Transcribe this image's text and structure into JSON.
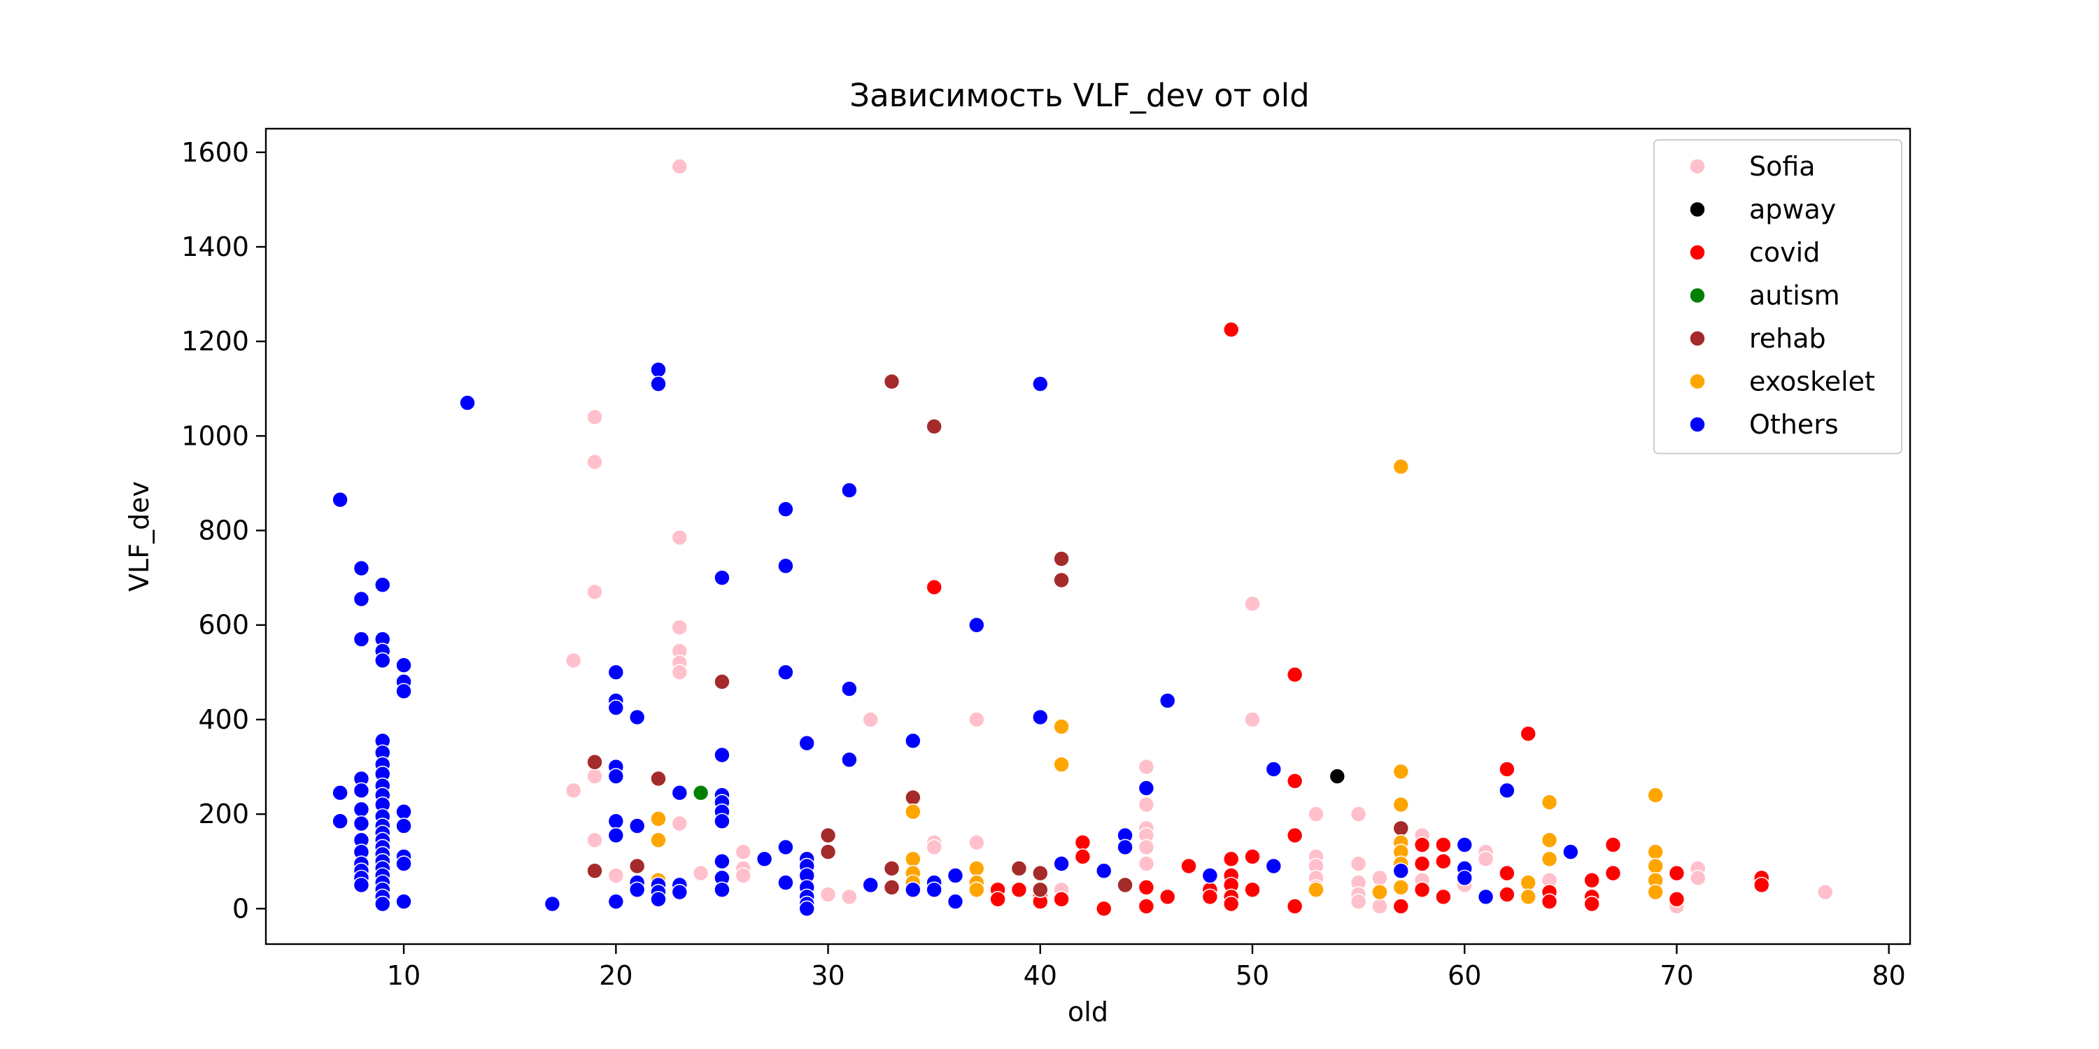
{
  "chart_data": {
    "type": "scatter",
    "title": "Зависимость VLF_dev от old",
    "xlabel": "old",
    "ylabel": "VLF_dev",
    "xlim": [
      3.5,
      81
    ],
    "ylim": [
      -75,
      1650
    ],
    "xticks": [
      10,
      20,
      30,
      40,
      50,
      60,
      70,
      80
    ],
    "yticks": [
      0,
      200,
      400,
      600,
      800,
      1000,
      1200,
      1400,
      1600
    ],
    "grid": false,
    "legend": "top-right",
    "series": [
      {
        "name": "Sofia",
        "color": "#ffc0cb",
        "points": [
          [
            18,
            525
          ],
          [
            18,
            250
          ],
          [
            19,
            1040
          ],
          [
            19,
            945
          ],
          [
            19,
            670
          ],
          [
            19,
            280
          ],
          [
            19,
            145
          ],
          [
            20,
            70
          ],
          [
            22,
            60
          ],
          [
            23,
            1570
          ],
          [
            23,
            785
          ],
          [
            23,
            595
          ],
          [
            23,
            545
          ],
          [
            23,
            520
          ],
          [
            23,
            500
          ],
          [
            23,
            180
          ],
          [
            24,
            75
          ],
          [
            26,
            120
          ],
          [
            26,
            85
          ],
          [
            26,
            70
          ],
          [
            30,
            30
          ],
          [
            31,
            25
          ],
          [
            32,
            400
          ],
          [
            35,
            140
          ],
          [
            35,
            130
          ],
          [
            37,
            400
          ],
          [
            37,
            140
          ],
          [
            41,
            40
          ],
          [
            45,
            300
          ],
          [
            45,
            220
          ],
          [
            45,
            170
          ],
          [
            45,
            155
          ],
          [
            45,
            130
          ],
          [
            45,
            95
          ],
          [
            50,
            645
          ],
          [
            50,
            400
          ],
          [
            53,
            200
          ],
          [
            53,
            110
          ],
          [
            53,
            90
          ],
          [
            53,
            65
          ],
          [
            53,
            45
          ],
          [
            55,
            200
          ],
          [
            55,
            95
          ],
          [
            55,
            55
          ],
          [
            55,
            30
          ],
          [
            55,
            15
          ],
          [
            56,
            65
          ],
          [
            56,
            5
          ],
          [
            57,
            100
          ],
          [
            58,
            155
          ],
          [
            58,
            60
          ],
          [
            60,
            50
          ],
          [
            61,
            120
          ],
          [
            61,
            105
          ],
          [
            64,
            60
          ],
          [
            69,
            85
          ],
          [
            70,
            15
          ],
          [
            70,
            5
          ],
          [
            71,
            85
          ],
          [
            71,
            65
          ],
          [
            77,
            35
          ]
        ]
      },
      {
        "name": "apway",
        "color": "#000000",
        "points": [
          [
            54,
            280
          ]
        ]
      },
      {
        "name": "covid",
        "color": "#ff0000",
        "points": [
          [
            35,
            680
          ],
          [
            38,
            40
          ],
          [
            38,
            20
          ],
          [
            39,
            40
          ],
          [
            40,
            30
          ],
          [
            40,
            15
          ],
          [
            41,
            20
          ],
          [
            42,
            140
          ],
          [
            42,
            110
          ],
          [
            43,
            0
          ],
          [
            45,
            45
          ],
          [
            45,
            5
          ],
          [
            46,
            25
          ],
          [
            47,
            90
          ],
          [
            48,
            40
          ],
          [
            48,
            25
          ],
          [
            49,
            1225
          ],
          [
            49,
            105
          ],
          [
            49,
            70
          ],
          [
            49,
            50
          ],
          [
            49,
            25
          ],
          [
            49,
            10
          ],
          [
            50,
            110
          ],
          [
            50,
            40
          ],
          [
            52,
            495
          ],
          [
            52,
            270
          ],
          [
            52,
            155
          ],
          [
            52,
            5
          ],
          [
            57,
            5
          ],
          [
            58,
            135
          ],
          [
            58,
            95
          ],
          [
            58,
            40
          ],
          [
            59,
            135
          ],
          [
            59,
            100
          ],
          [
            59,
            25
          ],
          [
            62,
            295
          ],
          [
            62,
            75
          ],
          [
            62,
            30
          ],
          [
            63,
            370
          ],
          [
            64,
            35
          ],
          [
            64,
            15
          ],
          [
            66,
            60
          ],
          [
            66,
            25
          ],
          [
            66,
            10
          ],
          [
            67,
            135
          ],
          [
            67,
            75
          ],
          [
            70,
            75
          ],
          [
            70,
            20
          ],
          [
            74,
            65
          ],
          [
            74,
            50
          ]
        ]
      },
      {
        "name": "autism",
        "color": "#008000",
        "points": [
          [
            24,
            245
          ]
        ]
      },
      {
        "name": "rehab",
        "color": "#a52a2a",
        "points": [
          [
            19,
            310
          ],
          [
            19,
            80
          ],
          [
            21,
            90
          ],
          [
            22,
            275
          ],
          [
            25,
            480
          ],
          [
            30,
            155
          ],
          [
            30,
            120
          ],
          [
            33,
            1115
          ],
          [
            33,
            85
          ],
          [
            33,
            45
          ],
          [
            34,
            235
          ],
          [
            35,
            1020
          ],
          [
            39,
            85
          ],
          [
            40,
            75
          ],
          [
            40,
            40
          ],
          [
            41,
            740
          ],
          [
            41,
            695
          ],
          [
            44,
            50
          ],
          [
            57,
            170
          ]
        ]
      },
      {
        "name": "exoskelet",
        "color": "#ffa500",
        "points": [
          [
            22,
            190
          ],
          [
            22,
            145
          ],
          [
            22,
            60
          ],
          [
            34,
            205
          ],
          [
            34,
            105
          ],
          [
            34,
            75
          ],
          [
            34,
            55
          ],
          [
            37,
            85
          ],
          [
            37,
            55
          ],
          [
            37,
            40
          ],
          [
            41,
            385
          ],
          [
            41,
            305
          ],
          [
            53,
            40
          ],
          [
            56,
            35
          ],
          [
            57,
            935
          ],
          [
            57,
            290
          ],
          [
            57,
            220
          ],
          [
            57,
            140
          ],
          [
            57,
            120
          ],
          [
            57,
            95
          ],
          [
            57,
            45
          ],
          [
            63,
            55
          ],
          [
            63,
            25
          ],
          [
            64,
            225
          ],
          [
            64,
            145
          ],
          [
            64,
            105
          ],
          [
            69,
            240
          ],
          [
            69,
            120
          ],
          [
            69,
            90
          ],
          [
            69,
            60
          ],
          [
            69,
            35
          ]
        ]
      },
      {
        "name": "Others",
        "color": "#0000ff",
        "points": [
          [
            7,
            865
          ],
          [
            7,
            245
          ],
          [
            7,
            185
          ],
          [
            8,
            720
          ],
          [
            8,
            655
          ],
          [
            8,
            570
          ],
          [
            8,
            275
          ],
          [
            8,
            250
          ],
          [
            8,
            210
          ],
          [
            8,
            180
          ],
          [
            8,
            145
          ],
          [
            8,
            120
          ],
          [
            8,
            95
          ],
          [
            8,
            80
          ],
          [
            8,
            65
          ],
          [
            8,
            50
          ],
          [
            9,
            685
          ],
          [
            9,
            570
          ],
          [
            9,
            545
          ],
          [
            9,
            525
          ],
          [
            9,
            355
          ],
          [
            9,
            330
          ],
          [
            9,
            305
          ],
          [
            9,
            285
          ],
          [
            9,
            260
          ],
          [
            9,
            240
          ],
          [
            9,
            220
          ],
          [
            9,
            195
          ],
          [
            9,
            175
          ],
          [
            9,
            160
          ],
          [
            9,
            145
          ],
          [
            9,
            130
          ],
          [
            9,
            115
          ],
          [
            9,
            100
          ],
          [
            9,
            85
          ],
          [
            9,
            70
          ],
          [
            9,
            55
          ],
          [
            9,
            40
          ],
          [
            9,
            25
          ],
          [
            9,
            10
          ],
          [
            10,
            515
          ],
          [
            10,
            480
          ],
          [
            10,
            460
          ],
          [
            10,
            205
          ],
          [
            10,
            175
          ],
          [
            10,
            110
          ],
          [
            10,
            95
          ],
          [
            10,
            15
          ],
          [
            13,
            1070
          ],
          [
            17,
            10
          ],
          [
            20,
            500
          ],
          [
            20,
            440
          ],
          [
            20,
            425
          ],
          [
            20,
            300
          ],
          [
            20,
            280
          ],
          [
            20,
            185
          ],
          [
            20,
            155
          ],
          [
            20,
            15
          ],
          [
            21,
            405
          ],
          [
            21,
            175
          ],
          [
            21,
            55
          ],
          [
            21,
            40
          ],
          [
            22,
            1140
          ],
          [
            22,
            1110
          ],
          [
            22,
            50
          ],
          [
            22,
            35
          ],
          [
            22,
            20
          ],
          [
            23,
            245
          ],
          [
            23,
            50
          ],
          [
            23,
            35
          ],
          [
            25,
            700
          ],
          [
            25,
            325
          ],
          [
            25,
            240
          ],
          [
            25,
            225
          ],
          [
            25,
            205
          ],
          [
            25,
            185
          ],
          [
            25,
            100
          ],
          [
            25,
            65
          ],
          [
            25,
            40
          ],
          [
            27,
            105
          ],
          [
            28,
            845
          ],
          [
            28,
            725
          ],
          [
            28,
            500
          ],
          [
            28,
            130
          ],
          [
            28,
            55
          ],
          [
            29,
            350
          ],
          [
            29,
            105
          ],
          [
            29,
            90
          ],
          [
            29,
            70
          ],
          [
            29,
            45
          ],
          [
            29,
            25
          ],
          [
            29,
            10
          ],
          [
            29,
            0
          ],
          [
            31,
            885
          ],
          [
            31,
            465
          ],
          [
            31,
            315
          ],
          [
            32,
            50
          ],
          [
            34,
            355
          ],
          [
            34,
            40
          ],
          [
            35,
            55
          ],
          [
            35,
            40
          ],
          [
            36,
            70
          ],
          [
            36,
            15
          ],
          [
            37,
            600
          ],
          [
            40,
            1110
          ],
          [
            40,
            405
          ],
          [
            41,
            95
          ],
          [
            43,
            80
          ],
          [
            44,
            155
          ],
          [
            44,
            130
          ],
          [
            45,
            255
          ],
          [
            46,
            440
          ],
          [
            48,
            70
          ],
          [
            51,
            295
          ],
          [
            51,
            90
          ],
          [
            57,
            80
          ],
          [
            60,
            135
          ],
          [
            60,
            85
          ],
          [
            60,
            65
          ],
          [
            61,
            25
          ],
          [
            62,
            250
          ],
          [
            65,
            120
          ]
        ]
      }
    ]
  }
}
